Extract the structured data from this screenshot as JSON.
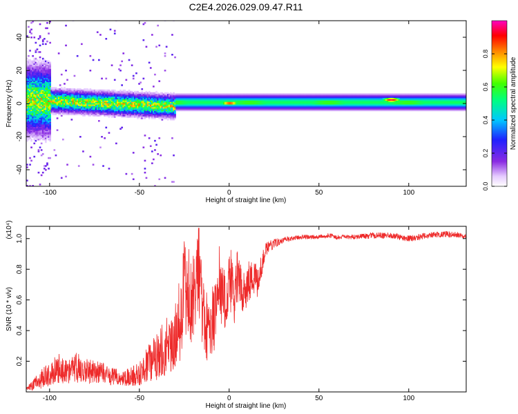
{
  "figure": {
    "title": "C2E4.2026.029.09.47.R11"
  },
  "chart_data": [
    {
      "type": "heatmap",
      "title": "C2E4.2026.029.09.47.R11",
      "xlabel": "Height of straight line (km)",
      "ylabel": "Frequency (Hz)",
      "xlim": [
        -113,
        132
      ],
      "ylim": [
        -50,
        50
      ],
      "x_ticks": [
        -100,
        -50,
        0,
        50,
        100
      ],
      "x_tick_labels": [
        "-100",
        "-50",
        "0",
        "50",
        "100"
      ],
      "y_ticks": [
        -40,
        -20,
        0,
        20,
        40
      ],
      "y_tick_labels": [
        "-40",
        "-20",
        "0",
        "20",
        "40"
      ],
      "colorbar": {
        "label": "Normalized spectral amplitude",
        "range": [
          0,
          1
        ],
        "ticks": [
          0.0,
          0.2,
          0.4,
          0.6,
          0.8
        ],
        "tick_labels": [
          "0.0",
          "0.2",
          "0.4",
          "0.6",
          "0.8"
        ]
      },
      "features": [
        {
          "x_range": [
            -113,
            -30
          ],
          "center_hz": 2,
          "spread_hz": 8,
          "note": "noisy scattered band"
        },
        {
          "x_range": [
            -30,
            132
          ],
          "center_hz": 0,
          "spread_hz": 4,
          "note": "narrow stable band"
        }
      ],
      "peaks": [
        {
          "x": 0,
          "y": 0,
          "amplitude": 0.9
        },
        {
          "x": 90,
          "y": 2,
          "amplitude": 0.95
        }
      ]
    },
    {
      "type": "line",
      "xlabel": "Height of straight line (km)",
      "ylabel": "SNR (10 * v/v)",
      "y_scale_label": "(x10⁴)",
      "xlim": [
        -113,
        132
      ],
      "ylim": [
        0,
        1.08
      ],
      "x_ticks": [
        -100,
        -50,
        0,
        50,
        100
      ],
      "x_tick_labels": [
        "-100",
        "-50",
        "0",
        "50",
        "100"
      ],
      "y_ticks": [
        0.2,
        0.4,
        0.6,
        0.8,
        1.0
      ],
      "y_tick_labels": [
        "0.2",
        "0.4",
        "0.6",
        "0.8",
        "1.0"
      ],
      "color": "#ee2a2a",
      "series": [
        {
          "name": "SNR",
          "x": [
            -113,
            -110,
            -105,
            -100,
            -95,
            -90,
            -85,
            -80,
            -75,
            -70,
            -65,
            -60,
            -55,
            -50,
            -45,
            -40,
            -35,
            -30,
            -27,
            -25,
            -23,
            -20,
            -17,
            -15,
            -12,
            -10,
            -8,
            -5,
            -2,
            0,
            3,
            5,
            8,
            10,
            13,
            15,
            18,
            20,
            25,
            30,
            35,
            40,
            45,
            50,
            55,
            60,
            70,
            80,
            90,
            100,
            110,
            120,
            130,
            132
          ],
          "y": [
            0.02,
            0.04,
            0.08,
            0.12,
            0.15,
            0.13,
            0.16,
            0.14,
            0.13,
            0.12,
            0.1,
            0.09,
            0.1,
            0.12,
            0.18,
            0.22,
            0.26,
            0.32,
            0.45,
            0.7,
            0.55,
            0.62,
            0.78,
            0.55,
            0.4,
            0.38,
            0.5,
            0.65,
            0.6,
            0.72,
            0.62,
            0.75,
            0.66,
            0.7,
            0.74,
            0.7,
            0.82,
            0.92,
            0.97,
            0.99,
            1.0,
            1.01,
            1.01,
            1.01,
            1.02,
            1.01,
            1.01,
            1.02,
            1.02,
            1.0,
            1.02,
            1.03,
            1.02,
            1.02
          ],
          "amplitude": [
            0.01,
            0.03,
            0.06,
            0.08,
            0.1,
            0.08,
            0.1,
            0.09,
            0.08,
            0.07,
            0.06,
            0.05,
            0.06,
            0.08,
            0.12,
            0.15,
            0.16,
            0.18,
            0.25,
            0.3,
            0.28,
            0.28,
            0.25,
            0.25,
            0.22,
            0.2,
            0.22,
            0.22,
            0.2,
            0.18,
            0.18,
            0.16,
            0.15,
            0.14,
            0.13,
            0.12,
            0.08,
            0.05,
            0.03,
            0.02,
            0.015,
            0.015,
            0.015,
            0.015,
            0.015,
            0.015,
            0.015,
            0.02,
            0.02,
            0.02,
            0.02,
            0.02,
            0.02,
            0.02
          ]
        }
      ]
    }
  ]
}
